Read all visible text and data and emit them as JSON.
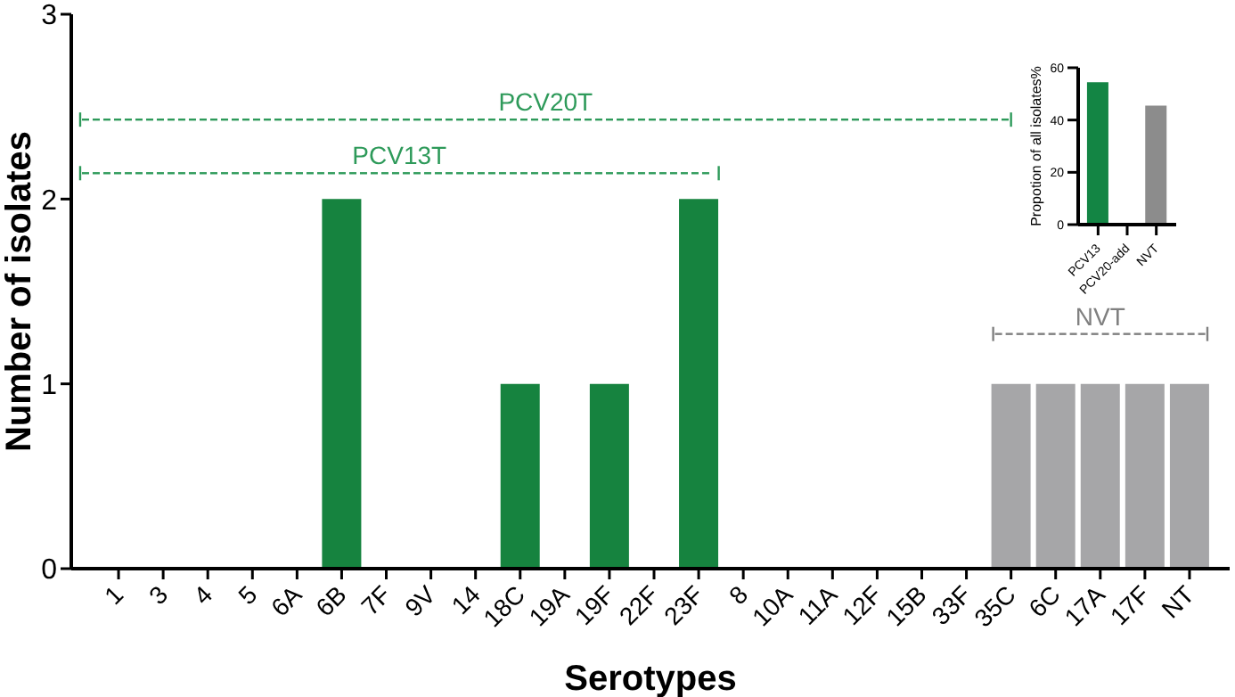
{
  "chart_data": [
    {
      "type": "bar",
      "xlabel": "Serotypes",
      "ylabel": "Number of isolates",
      "categories": [
        "1",
        "3",
        "4",
        "5",
        "6A",
        "6B",
        "7F",
        "9V",
        "14",
        "18C",
        "19A",
        "19F",
        "22F",
        "23F",
        "8",
        "10A",
        "11A",
        "12F",
        "15B",
        "33F",
        "35C",
        "6C",
        "17A",
        "17F",
        "NT"
      ],
      "values": [
        0,
        0,
        0,
        0,
        0,
        2,
        0,
        0,
        0,
        1,
        0,
        1,
        0,
        2,
        0,
        0,
        0,
        0,
        0,
        0,
        1,
        1,
        1,
        1,
        1
      ],
      "colors": [
        "#16833f",
        "#16833f",
        "#16833f",
        "#16833f",
        "#16833f",
        "#16833f",
        "#16833f",
        "#16833f",
        "#16833f",
        "#16833f",
        "#16833f",
        "#16833f",
        "#16833f",
        "#16833f",
        "#16833f",
        "#16833f",
        "#16833f",
        "#16833f",
        "#16833f",
        "#16833f",
        "#a6a6a8",
        "#a6a6a8",
        "#a6a6a8",
        "#a6a6a8",
        "#a6a6a8"
      ],
      "ylim": [
        0,
        3
      ],
      "yticks": [
        0,
        1,
        2,
        3
      ],
      "annotations": [
        "PCV20T",
        "PCV13T",
        "NVT"
      ]
    },
    {
      "type": "bar",
      "ylabel": "Propotion of all isolates%",
      "categories": [
        "PCV13",
        "PCV20-add",
        "NVT"
      ],
      "values": [
        54.5,
        0,
        45.5
      ],
      "colors": [
        "#138544",
        "#138544",
        "#8c8c8c"
      ],
      "ylim": [
        0,
        60
      ],
      "yticks": [
        0,
        20,
        40,
        60
      ]
    }
  ]
}
